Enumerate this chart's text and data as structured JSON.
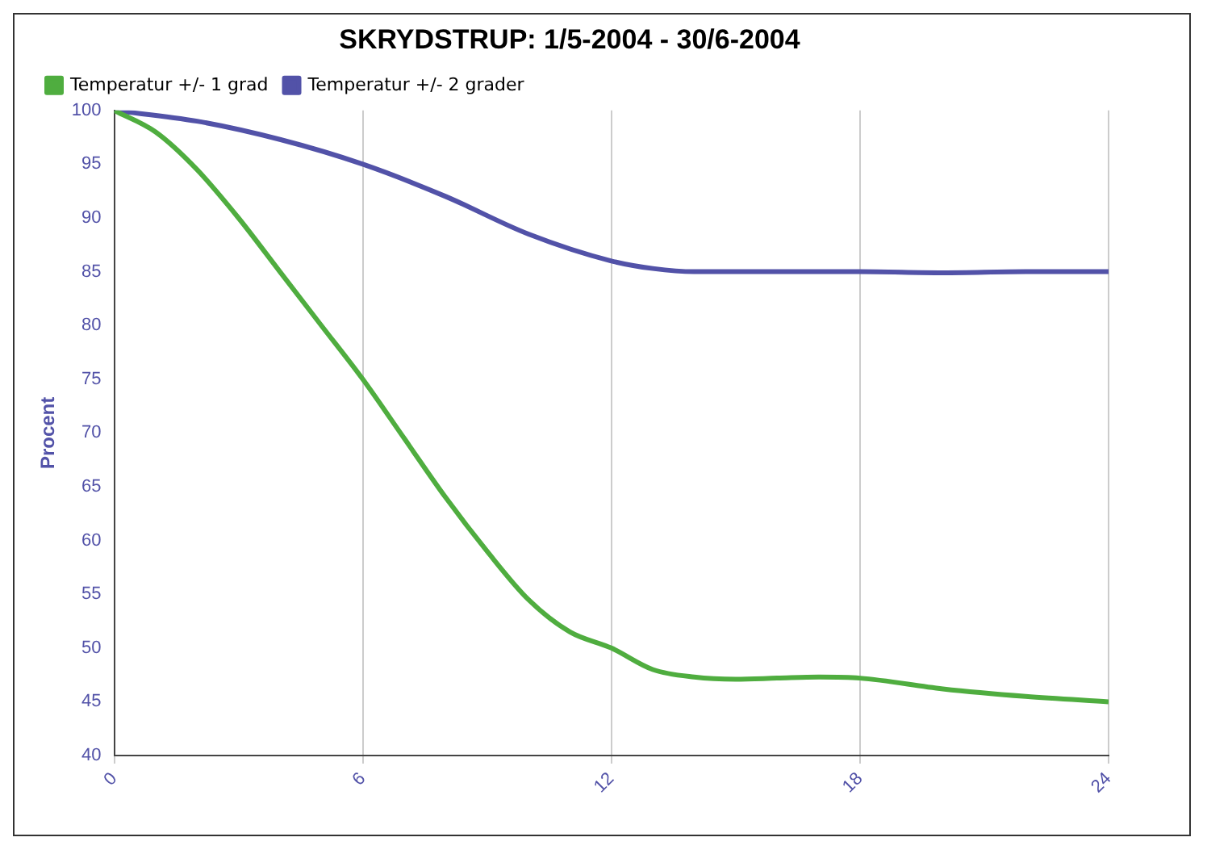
{
  "chart_data": {
    "type": "line",
    "title": "SKRYDSTRUP: 1/5-2004 - 30/6-2004",
    "ylabel": "Procent",
    "xlim": [
      0,
      24
    ],
    "xticks": [
      0,
      6,
      12,
      18,
      24
    ],
    "ylim": [
      40,
      100
    ],
    "yticks": [
      40,
      45,
      50,
      55,
      60,
      65,
      70,
      75,
      80,
      85,
      90,
      95,
      100
    ],
    "grid": "x",
    "legend": "top left",
    "marker": "none",
    "line_style": "solid",
    "series": [
      {
        "name": "Temperatur +/- 1 grad",
        "color": "#4fad3f",
        "x": [
          0,
          1,
          2,
          3,
          4,
          5,
          6,
          7,
          8,
          9,
          10,
          11,
          12,
          13,
          14,
          15,
          16,
          17,
          18,
          20,
          22,
          24
        ],
        "values": [
          100,
          98,
          94.5,
          90,
          85,
          80,
          75,
          69.5,
          64,
          59,
          54.5,
          51.5,
          50,
          48,
          47.3,
          47.1,
          47.2,
          47.3,
          47.2,
          46.2,
          45.5,
          45
        ]
      },
      {
        "name": "Temperatur +/- 2 grader",
        "color": "#5252a8",
        "x": [
          0,
          2,
          4,
          6,
          8,
          10,
          12,
          13,
          14,
          16,
          18,
          20,
          22,
          24
        ],
        "values": [
          100,
          99,
          97.3,
          95,
          92,
          88.5,
          86,
          85.3,
          85,
          85,
          85,
          84.9,
          85,
          85
        ]
      }
    ]
  }
}
